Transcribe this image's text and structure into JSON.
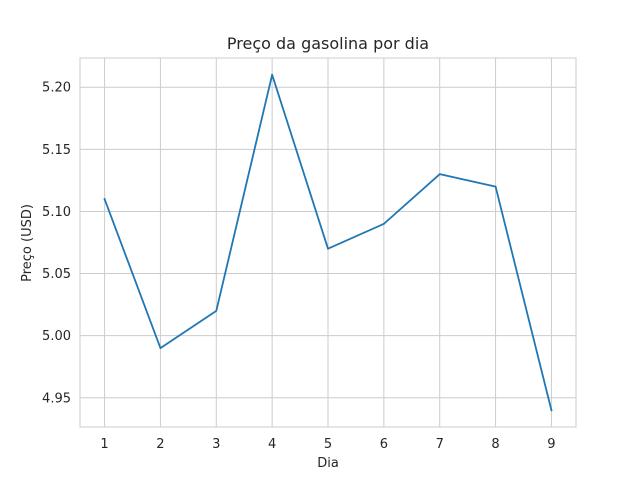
{
  "chart_data": {
    "type": "line",
    "title": "Preço da gasolina por dia",
    "xlabel": "Dia",
    "ylabel": "Preço (USD)",
    "x": [
      1,
      2,
      3,
      4,
      5,
      6,
      7,
      8,
      9
    ],
    "series": [
      {
        "values": [
          5.11,
          4.99,
          5.02,
          5.21,
          5.07,
          5.09,
          5.13,
          5.12,
          4.94
        ],
        "color": "#1f77b4"
      }
    ],
    "x_ticks": [
      "1",
      "2",
      "3",
      "4",
      "5",
      "6",
      "7",
      "8",
      "9"
    ],
    "y_ticks": [
      "4.95",
      "5.00",
      "5.05",
      "5.10",
      "5.15",
      "5.20"
    ],
    "xlim": [
      0.56,
      9.44
    ],
    "ylim": [
      4.9265,
      5.2235
    ],
    "grid": true,
    "style": {
      "grid_color": "#cccccc",
      "frame_color": "#cccccc"
    }
  }
}
